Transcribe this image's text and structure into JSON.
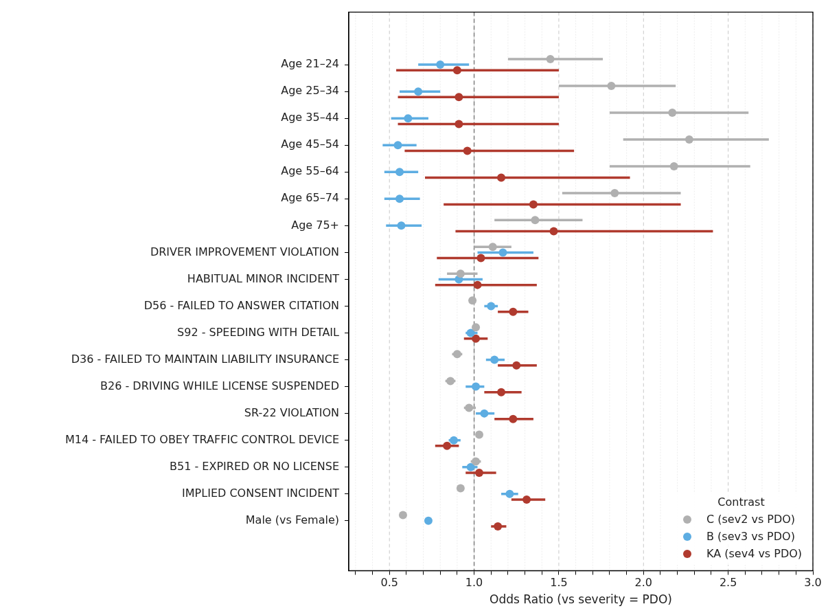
{
  "chart_data": {
    "type": "scatter",
    "orientation": "horizontal",
    "marker": "circle",
    "grid": "x",
    "legend": "bottom right",
    "legend_title": "Contrast",
    "xlabel": "Odds Ratio (vs severity = PDO)",
    "categories": [
      "Age 21–24",
      "Age 25–34",
      "Age 35–44",
      "Age 45–54",
      "Age 55–64",
      "Age 65–74",
      "Age 75+",
      "DRIVER IMPROVEMENT VIOLATION",
      "HABITUAL MINOR INCIDENT",
      "D56 - FAILED TO ANSWER CITATION",
      "S92 - SPEEDING WITH DETAIL",
      "D36 - FAILED TO MAINTAIN LIABILITY INSURANCE",
      "B26 - DRIVING WHILE LICENSE SUSPENDED",
      "SR-22 VIOLATION",
      "M14 - FAILED TO OBEY TRAFFIC CONTROL DEVICE",
      "B51 - EXPIRED OR NO LICENSE",
      "IMPLIED CONSENT INCIDENT",
      "Male (vs Female)"
    ],
    "xlim": [
      0.26,
      3.0
    ],
    "xticks": [
      {
        "value": 0.3,
        "label": null
      },
      {
        "value": 0.4,
        "label": null
      },
      0.5,
      {
        "value": 0.6,
        "label": null
      },
      {
        "value": 0.7,
        "label": null
      },
      {
        "value": 0.8,
        "label": null
      },
      {
        "value": 0.9,
        "label": null
      },
      {
        "value": 1.0,
        "label": "1.0"
      },
      {
        "value": 1.1,
        "label": null
      },
      {
        "value": 1.2,
        "label": null
      },
      {
        "value": 1.3,
        "label": null
      },
      {
        "value": 1.4,
        "label": null
      },
      1.5,
      {
        "value": 1.6,
        "label": null
      },
      {
        "value": 1.7,
        "label": null
      },
      {
        "value": 1.8,
        "label": null
      },
      {
        "value": 1.9,
        "label": null
      },
      {
        "value": 2.0,
        "label": "2.0"
      },
      {
        "value": 2.1,
        "label": null
      },
      {
        "value": 2.2,
        "label": null
      },
      {
        "value": 2.3,
        "label": null
      },
      {
        "value": 2.4,
        "label": null
      },
      2.5,
      {
        "value": 2.6,
        "label": null
      },
      {
        "value": 2.7,
        "label": null
      },
      {
        "value": 2.8,
        "label": null
      },
      {
        "value": 2.9,
        "label": null
      },
      {
        "value": 3.0,
        "label": "3.0"
      }
    ],
    "ref_lines": [
      {
        "axis": "x",
        "value": 1.0,
        "color": "#808080",
        "line_style": "dashed"
      }
    ],
    "series": [
      {
        "name": "C (sev2 vs PDO)",
        "color": "#b0b0b0",
        "values": [
          1.45,
          1.81,
          2.17,
          2.27,
          2.18,
          1.83,
          1.36,
          1.11,
          0.92,
          0.99,
          1.01,
          0.9,
          0.86,
          0.97,
          1.03,
          1.01,
          0.92,
          0.58
        ],
        "errors": [
          [
            1.2,
            1.76
          ],
          [
            1.5,
            2.19
          ],
          [
            1.8,
            2.62
          ],
          [
            1.88,
            2.74
          ],
          [
            1.8,
            2.63
          ],
          [
            1.52,
            2.22
          ],
          [
            1.12,
            1.64
          ],
          [
            1.0,
            1.22
          ],
          [
            0.84,
            1.02
          ],
          null,
          null,
          [
            0.87,
            0.93
          ],
          [
            0.83,
            0.89
          ],
          [
            0.94,
            1.01
          ],
          null,
          [
            0.98,
            1.04
          ],
          null,
          null
        ]
      },
      {
        "name": "B (sev3 vs PDO)",
        "color": "#5dade2",
        "values": [
          0.8,
          0.67,
          0.61,
          0.55,
          0.56,
          0.56,
          0.57,
          1.17,
          0.91,
          1.1,
          0.98,
          1.12,
          1.01,
          1.06,
          0.88,
          0.98,
          1.21,
          0.73
        ],
        "errors": [
          [
            0.67,
            0.97
          ],
          [
            0.56,
            0.8
          ],
          [
            0.51,
            0.73
          ],
          [
            0.46,
            0.66
          ],
          [
            0.47,
            0.67
          ],
          [
            0.47,
            0.68
          ],
          [
            0.48,
            0.69
          ],
          [
            1.02,
            1.35
          ],
          [
            0.79,
            1.05
          ],
          [
            1.06,
            1.14
          ],
          [
            0.95,
            1.02
          ],
          [
            1.07,
            1.18
          ],
          [
            0.95,
            1.06
          ],
          [
            1.01,
            1.12
          ],
          [
            0.85,
            0.92
          ],
          [
            0.93,
            1.02
          ],
          [
            1.16,
            1.26
          ],
          null
        ]
      },
      {
        "name": "KA (sev4 vs PDO)",
        "color": "#b03a2e",
        "values": [
          0.9,
          0.91,
          0.91,
          0.96,
          1.16,
          1.35,
          1.47,
          1.04,
          1.02,
          1.23,
          1.01,
          1.25,
          1.16,
          1.23,
          0.84,
          1.03,
          1.31,
          1.14
        ],
        "errors": [
          [
            0.54,
            1.5
          ],
          [
            0.55,
            1.5
          ],
          [
            0.55,
            1.5
          ],
          [
            0.59,
            1.59
          ],
          [
            0.71,
            1.92
          ],
          [
            0.82,
            2.22
          ],
          [
            0.89,
            2.41
          ],
          [
            0.78,
            1.38
          ],
          [
            0.77,
            1.37
          ],
          [
            1.14,
            1.32
          ],
          [
            0.94,
            1.08
          ],
          [
            1.14,
            1.37
          ],
          [
            1.06,
            1.28
          ],
          [
            1.12,
            1.35
          ],
          [
            0.77,
            0.91
          ],
          [
            0.95,
            1.13
          ],
          [
            1.22,
            1.42
          ],
          [
            1.1,
            1.19
          ]
        ]
      }
    ]
  }
}
